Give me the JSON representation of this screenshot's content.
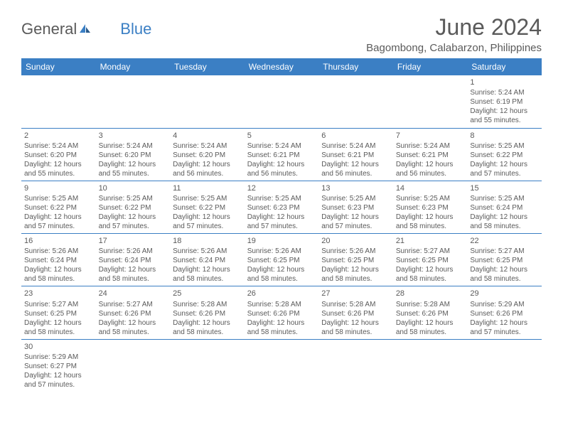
{
  "logo": {
    "general": "General",
    "blue": "Blue"
  },
  "title": "June 2024",
  "location": "Bagombong, Calabarzon, Philippines",
  "day_headers": [
    "Sunday",
    "Monday",
    "Tuesday",
    "Wednesday",
    "Thursday",
    "Friday",
    "Saturday"
  ],
  "colors": {
    "header_bg": "#3b7fc4",
    "header_text": "#ffffff",
    "text": "#5a5a5a",
    "border": "#3b7fc4"
  },
  "weeks": [
    [
      null,
      null,
      null,
      null,
      null,
      null,
      {
        "num": "1",
        "sunrise": "Sunrise: 5:24 AM",
        "sunset": "Sunset: 6:19 PM",
        "daylight1": "Daylight: 12 hours",
        "daylight2": "and 55 minutes."
      }
    ],
    [
      {
        "num": "2",
        "sunrise": "Sunrise: 5:24 AM",
        "sunset": "Sunset: 6:20 PM",
        "daylight1": "Daylight: 12 hours",
        "daylight2": "and 55 minutes."
      },
      {
        "num": "3",
        "sunrise": "Sunrise: 5:24 AM",
        "sunset": "Sunset: 6:20 PM",
        "daylight1": "Daylight: 12 hours",
        "daylight2": "and 55 minutes."
      },
      {
        "num": "4",
        "sunrise": "Sunrise: 5:24 AM",
        "sunset": "Sunset: 6:20 PM",
        "daylight1": "Daylight: 12 hours",
        "daylight2": "and 56 minutes."
      },
      {
        "num": "5",
        "sunrise": "Sunrise: 5:24 AM",
        "sunset": "Sunset: 6:21 PM",
        "daylight1": "Daylight: 12 hours",
        "daylight2": "and 56 minutes."
      },
      {
        "num": "6",
        "sunrise": "Sunrise: 5:24 AM",
        "sunset": "Sunset: 6:21 PM",
        "daylight1": "Daylight: 12 hours",
        "daylight2": "and 56 minutes."
      },
      {
        "num": "7",
        "sunrise": "Sunrise: 5:24 AM",
        "sunset": "Sunset: 6:21 PM",
        "daylight1": "Daylight: 12 hours",
        "daylight2": "and 56 minutes."
      },
      {
        "num": "8",
        "sunrise": "Sunrise: 5:25 AM",
        "sunset": "Sunset: 6:22 PM",
        "daylight1": "Daylight: 12 hours",
        "daylight2": "and 57 minutes."
      }
    ],
    [
      {
        "num": "9",
        "sunrise": "Sunrise: 5:25 AM",
        "sunset": "Sunset: 6:22 PM",
        "daylight1": "Daylight: 12 hours",
        "daylight2": "and 57 minutes."
      },
      {
        "num": "10",
        "sunrise": "Sunrise: 5:25 AM",
        "sunset": "Sunset: 6:22 PM",
        "daylight1": "Daylight: 12 hours",
        "daylight2": "and 57 minutes."
      },
      {
        "num": "11",
        "sunrise": "Sunrise: 5:25 AM",
        "sunset": "Sunset: 6:22 PM",
        "daylight1": "Daylight: 12 hours",
        "daylight2": "and 57 minutes."
      },
      {
        "num": "12",
        "sunrise": "Sunrise: 5:25 AM",
        "sunset": "Sunset: 6:23 PM",
        "daylight1": "Daylight: 12 hours",
        "daylight2": "and 57 minutes."
      },
      {
        "num": "13",
        "sunrise": "Sunrise: 5:25 AM",
        "sunset": "Sunset: 6:23 PM",
        "daylight1": "Daylight: 12 hours",
        "daylight2": "and 57 minutes."
      },
      {
        "num": "14",
        "sunrise": "Sunrise: 5:25 AM",
        "sunset": "Sunset: 6:23 PM",
        "daylight1": "Daylight: 12 hours",
        "daylight2": "and 58 minutes."
      },
      {
        "num": "15",
        "sunrise": "Sunrise: 5:25 AM",
        "sunset": "Sunset: 6:24 PM",
        "daylight1": "Daylight: 12 hours",
        "daylight2": "and 58 minutes."
      }
    ],
    [
      {
        "num": "16",
        "sunrise": "Sunrise: 5:26 AM",
        "sunset": "Sunset: 6:24 PM",
        "daylight1": "Daylight: 12 hours",
        "daylight2": "and 58 minutes."
      },
      {
        "num": "17",
        "sunrise": "Sunrise: 5:26 AM",
        "sunset": "Sunset: 6:24 PM",
        "daylight1": "Daylight: 12 hours",
        "daylight2": "and 58 minutes."
      },
      {
        "num": "18",
        "sunrise": "Sunrise: 5:26 AM",
        "sunset": "Sunset: 6:24 PM",
        "daylight1": "Daylight: 12 hours",
        "daylight2": "and 58 minutes."
      },
      {
        "num": "19",
        "sunrise": "Sunrise: 5:26 AM",
        "sunset": "Sunset: 6:25 PM",
        "daylight1": "Daylight: 12 hours",
        "daylight2": "and 58 minutes."
      },
      {
        "num": "20",
        "sunrise": "Sunrise: 5:26 AM",
        "sunset": "Sunset: 6:25 PM",
        "daylight1": "Daylight: 12 hours",
        "daylight2": "and 58 minutes."
      },
      {
        "num": "21",
        "sunrise": "Sunrise: 5:27 AM",
        "sunset": "Sunset: 6:25 PM",
        "daylight1": "Daylight: 12 hours",
        "daylight2": "and 58 minutes."
      },
      {
        "num": "22",
        "sunrise": "Sunrise: 5:27 AM",
        "sunset": "Sunset: 6:25 PM",
        "daylight1": "Daylight: 12 hours",
        "daylight2": "and 58 minutes."
      }
    ],
    [
      {
        "num": "23",
        "sunrise": "Sunrise: 5:27 AM",
        "sunset": "Sunset: 6:25 PM",
        "daylight1": "Daylight: 12 hours",
        "daylight2": "and 58 minutes."
      },
      {
        "num": "24",
        "sunrise": "Sunrise: 5:27 AM",
        "sunset": "Sunset: 6:26 PM",
        "daylight1": "Daylight: 12 hours",
        "daylight2": "and 58 minutes."
      },
      {
        "num": "25",
        "sunrise": "Sunrise: 5:28 AM",
        "sunset": "Sunset: 6:26 PM",
        "daylight1": "Daylight: 12 hours",
        "daylight2": "and 58 minutes."
      },
      {
        "num": "26",
        "sunrise": "Sunrise: 5:28 AM",
        "sunset": "Sunset: 6:26 PM",
        "daylight1": "Daylight: 12 hours",
        "daylight2": "and 58 minutes."
      },
      {
        "num": "27",
        "sunrise": "Sunrise: 5:28 AM",
        "sunset": "Sunset: 6:26 PM",
        "daylight1": "Daylight: 12 hours",
        "daylight2": "and 58 minutes."
      },
      {
        "num": "28",
        "sunrise": "Sunrise: 5:28 AM",
        "sunset": "Sunset: 6:26 PM",
        "daylight1": "Daylight: 12 hours",
        "daylight2": "and 58 minutes."
      },
      {
        "num": "29",
        "sunrise": "Sunrise: 5:29 AM",
        "sunset": "Sunset: 6:26 PM",
        "daylight1": "Daylight: 12 hours",
        "daylight2": "and 57 minutes."
      }
    ],
    [
      {
        "num": "30",
        "sunrise": "Sunrise: 5:29 AM",
        "sunset": "Sunset: 6:27 PM",
        "daylight1": "Daylight: 12 hours",
        "daylight2": "and 57 minutes."
      },
      null,
      null,
      null,
      null,
      null,
      null
    ]
  ]
}
